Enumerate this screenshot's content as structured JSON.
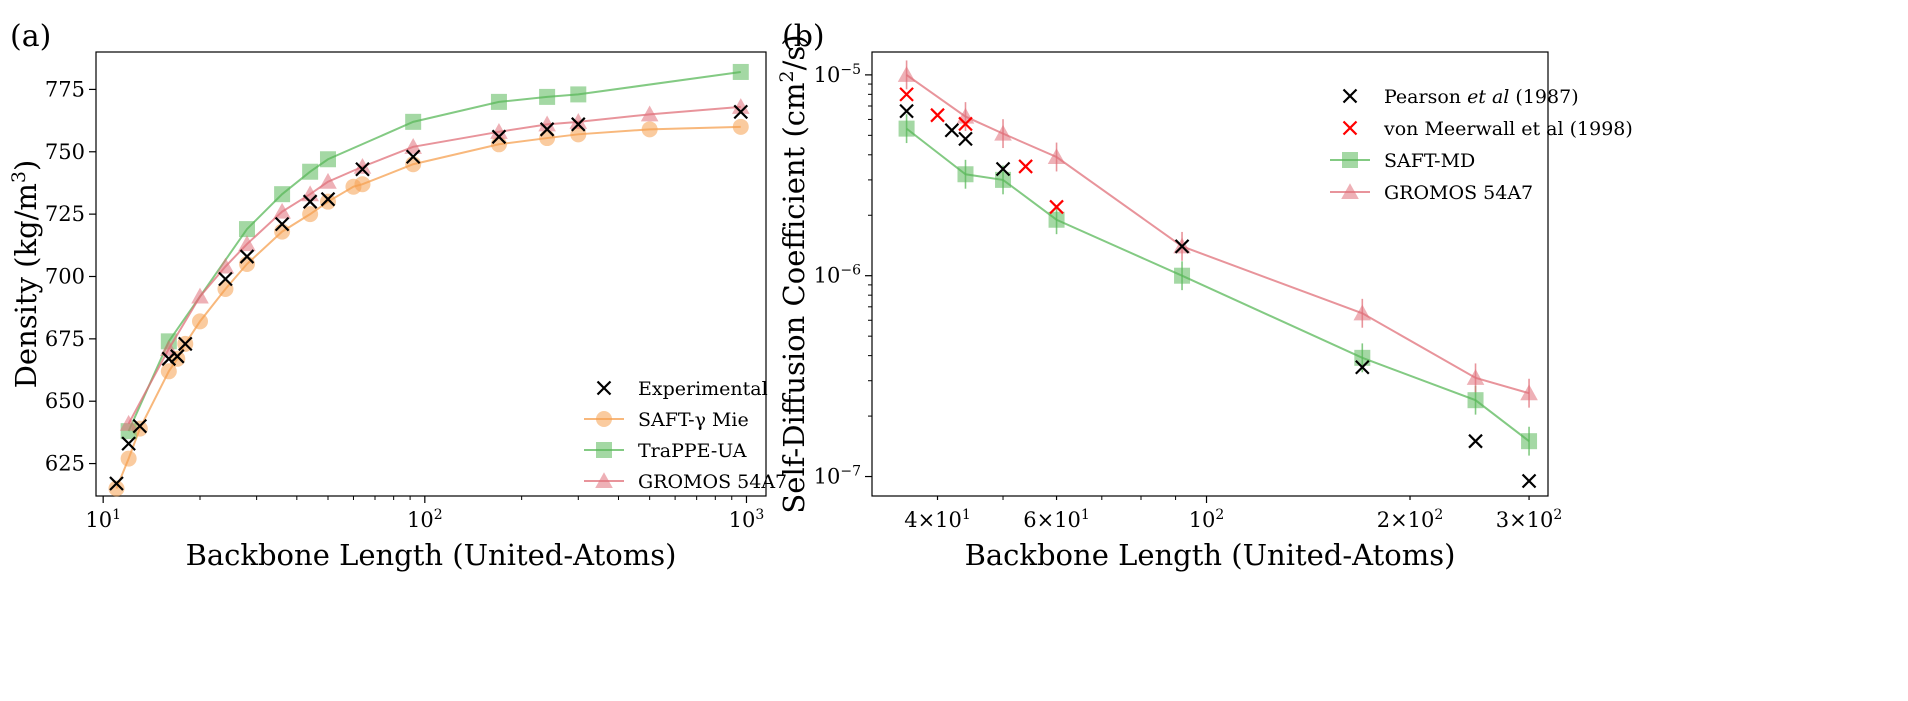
{
  "chart_data": [
    {
      "panel_label": "(a)",
      "type": "line",
      "xscale": "log",
      "yscale": "linear",
      "xlim": [
        9.5,
        1150
      ],
      "ylim": [
        612,
        790
      ],
      "xlabel": "Backbone Length (United-Atoms)",
      "ylabel": "Density (kg/m",
      "ylabel_sup": "3",
      "ylabel_end": ")",
      "x_ticks": [
        {
          "value": 10,
          "base": "10",
          "exp": "1"
        },
        {
          "value": 100,
          "base": "10",
          "exp": "2"
        },
        {
          "value": 1000,
          "base": "10",
          "exp": "3"
        }
      ],
      "y_ticks": [
        625,
        650,
        675,
        700,
        725,
        750,
        775
      ],
      "legend_position": "lower-right",
      "series": [
        {
          "name": "Experimental",
          "marker": "x",
          "line": false,
          "color": "#000000",
          "x": [
            11,
            12,
            13,
            16,
            17,
            18,
            24,
            28,
            36,
            44,
            50,
            64,
            92,
            170,
            240,
            300,
            960
          ],
          "y": [
            617,
            633,
            640,
            667,
            668,
            673,
            699,
            708,
            721,
            730,
            731,
            743,
            748,
            756,
            759,
            761,
            766
          ]
        },
        {
          "name": "SAFT-γ Mie",
          "marker": "circle",
          "line": true,
          "color": "#f5a050",
          "x": [
            11,
            12,
            13,
            16,
            17,
            18,
            20,
            24,
            28,
            36,
            44,
            50,
            60,
            64,
            92,
            170,
            240,
            300,
            500,
            960
          ],
          "y": [
            615,
            627,
            639,
            662,
            667,
            673,
            682,
            695,
            705,
            718,
            725,
            730,
            736,
            737,
            745,
            753,
            755.5,
            757,
            759,
            760
          ]
        },
        {
          "name": "TraPPE-UA",
          "marker": "square",
          "line": true,
          "color": "#59b859",
          "x": [
            12,
            16,
            28,
            36,
            44,
            50,
            92,
            170,
            240,
            300,
            960
          ],
          "y": [
            638,
            674,
            719,
            733,
            742,
            747,
            762,
            770,
            772,
            773,
            782
          ]
        },
        {
          "name": "GROMOS 54A7",
          "marker": "triangle",
          "line": true,
          "color": "#e0707a",
          "x": [
            12,
            16,
            20,
            24,
            28,
            36,
            44,
            50,
            64,
            92,
            170,
            240,
            300,
            500,
            960
          ],
          "y": [
            641,
            671,
            692,
            704,
            713,
            726,
            733,
            738,
            744,
            752,
            758,
            761,
            762,
            765,
            768
          ]
        }
      ]
    },
    {
      "panel_label": "(b)",
      "type": "line",
      "xscale": "log",
      "yscale": "log",
      "xlim": [
        32,
        320
      ],
      "ylim": [
        8e-08,
        1.3e-05
      ],
      "xlabel": "Backbone Length (United-Atoms)",
      "ylabel": "Self-Diffusion Coefficient (cm",
      "ylabel_sup": "2",
      "ylabel_end": "/s)",
      "x_ticks": [
        {
          "value": 40,
          "base": "4×10",
          "exp": "1"
        },
        {
          "value": 60,
          "base": "6×10",
          "exp": "1"
        },
        {
          "value": 100,
          "base": "10",
          "exp": "2"
        },
        {
          "value": 200,
          "base": "2×10",
          "exp": "2"
        },
        {
          "value": 300,
          "base": "3×10",
          "exp": "2"
        }
      ],
      "y_ticks": [
        {
          "value": 1e-07,
          "base": "10",
          "exp": "−7"
        },
        {
          "value": 1e-06,
          "base": "10",
          "exp": "−6"
        },
        {
          "value": 1e-05,
          "base": "10",
          "exp": "−5"
        }
      ],
      "legend_position": "upper-right",
      "series": [
        {
          "name_parts": [
            "Pearson ",
            "et al",
            " (1987)"
          ],
          "marker": "x",
          "line": false,
          "color": "#000000",
          "x": [
            36,
            42,
            44,
            50,
            92,
            170,
            250,
            300
          ],
          "y": [
            6.6e-06,
            5.3e-06,
            4.8e-06,
            3.4e-06,
            1.4e-06,
            3.5e-07,
            1.5e-07,
            9.5e-08
          ]
        },
        {
          "name": "von Meerwall et al (1998)",
          "marker": "x",
          "line": false,
          "color": "#ff0000",
          "x": [
            36,
            40,
            44,
            54,
            60
          ],
          "y": [
            8e-06,
            6.3e-06,
            5.7e-06,
            3.5e-06,
            2.2e-06
          ]
        },
        {
          "name": "SAFT-MD",
          "marker": "square",
          "line": true,
          "color": "#59b859",
          "x": [
            36,
            44,
            50,
            60,
            92,
            170,
            250,
            300
          ],
          "y": [
            5.4e-06,
            3.2e-06,
            3e-06,
            1.9e-06,
            1e-06,
            3.9e-07,
            2.4e-07,
            1.5e-07
          ]
        },
        {
          "name": "GROMOS 54A7",
          "marker": "triangle",
          "line": true,
          "color": "#e0707a",
          "x": [
            36,
            44,
            50,
            60,
            92,
            170,
            250,
            300
          ],
          "y": [
            1e-05,
            6.2e-06,
            5.1e-06,
            3.9e-06,
            1.4e-06,
            6.5e-07,
            3.1e-07,
            2.6e-07
          ]
        }
      ]
    }
  ]
}
